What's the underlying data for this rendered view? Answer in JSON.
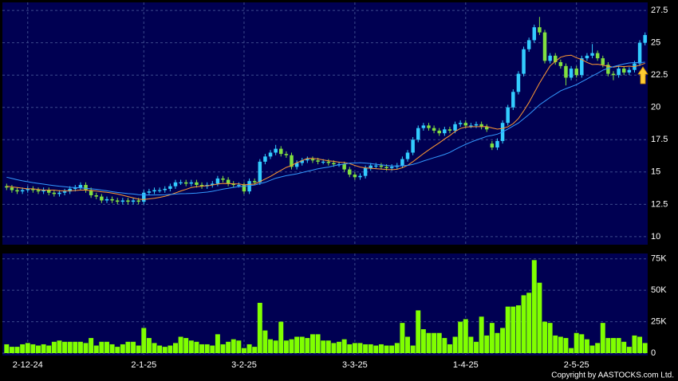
{
  "chart_data": [
    {
      "type": "candlestick",
      "categories": [
        null,
        null,
        null,
        null,
        "2-12-24",
        null,
        null,
        null,
        null,
        null,
        null,
        null,
        null,
        null,
        null,
        null,
        null,
        null,
        null,
        null,
        null,
        null,
        null,
        null,
        null,
        null,
        "2-1-25",
        null,
        null,
        null,
        null,
        null,
        null,
        null,
        null,
        null,
        null,
        null,
        null,
        null,
        null,
        null,
        null,
        null,
        null,
        "3-2-25",
        null,
        null,
        null,
        null,
        null,
        null,
        null,
        null,
        null,
        null,
        null,
        null,
        null,
        null,
        null,
        null,
        null,
        null,
        null,
        null,
        "3-3-25",
        null,
        null,
        null,
        null,
        null,
        null,
        null,
        null,
        null,
        null,
        null,
        null,
        null,
        null,
        null,
        null,
        null,
        null,
        null,
        null,
        "1-4-25",
        null,
        null,
        null,
        null,
        null,
        null,
        null,
        null,
        null,
        null,
        null,
        null,
        null,
        null,
        null,
        null,
        null,
        null,
        null,
        null,
        "2-5-25",
        null,
        null,
        null,
        null,
        null,
        null,
        null,
        null,
        null,
        null,
        null,
        null,
        null
      ],
      "open": [
        13.9,
        13.8,
        13.6,
        13.5,
        13.6,
        13.7,
        13.6,
        13.5,
        13.6,
        13.4,
        13.3,
        13.4,
        13.5,
        13.7,
        13.8,
        14.0,
        13.6,
        13.2,
        13.1,
        12.8,
        12.9,
        12.8,
        12.7,
        12.8,
        12.7,
        12.8,
        12.7,
        13.4,
        13.5,
        13.6,
        13.6,
        13.7,
        13.9,
        14.2,
        14.2,
        14.1,
        14.2,
        14.0,
        13.9,
        14.0,
        14.1,
        14.5,
        14.4,
        14.1,
        14.0,
        14.0,
        13.5,
        14.3,
        14.2,
        15.8,
        16.2,
        16.5,
        16.8,
        16.4,
        16.3,
        15.4,
        15.7,
        15.9,
        16.0,
        15.9,
        15.8,
        15.8,
        15.7,
        15.6,
        15.6,
        15.2,
        14.8,
        14.6,
        14.7,
        15.3,
        15.5,
        15.5,
        15.4,
        15.3,
        15.4,
        15.5,
        16.0,
        16.5,
        17.5,
        18.4,
        18.6,
        18.4,
        18.2,
        18.0,
        18.3,
        18.2,
        18.7,
        18.8,
        18.6,
        18.6,
        18.7,
        18.5,
        17.2,
        16.9,
        17.4,
        18.8,
        20.0,
        21.2,
        22.6,
        24.5,
        25.2,
        26.2,
        25.8,
        23.6,
        24.0,
        23.5,
        23.2,
        22.3,
        23.0,
        22.5,
        23.8,
        24.0,
        24.2,
        23.8,
        23.3,
        22.6,
        22.5,
        23.0,
        22.7,
        22.9,
        23.4,
        25.0
      ],
      "high": [
        14.1,
        14.0,
        13.8,
        13.8,
        13.9,
        13.9,
        13.8,
        13.8,
        13.8,
        13.6,
        13.6,
        13.7,
        13.9,
        14.0,
        14.2,
        14.2,
        13.8,
        13.4,
        13.3,
        13.1,
        13.1,
        13.0,
        13.0,
        13.0,
        13.0,
        13.0,
        13.6,
        13.7,
        13.8,
        13.8,
        13.9,
        14.1,
        14.4,
        14.4,
        14.4,
        14.4,
        14.4,
        14.2,
        14.2,
        14.3,
        14.7,
        14.7,
        14.6,
        14.3,
        14.2,
        14.2,
        14.5,
        14.5,
        16.0,
        16.4,
        16.7,
        17.1,
        17.0,
        16.6,
        16.5,
        15.9,
        16.1,
        16.2,
        16.2,
        16.1,
        16.0,
        16.0,
        15.9,
        15.8,
        15.8,
        15.4,
        15.0,
        14.9,
        15.5,
        15.7,
        15.7,
        15.7,
        15.6,
        15.6,
        15.7,
        16.2,
        16.7,
        17.7,
        18.6,
        18.8,
        18.8,
        18.6,
        18.4,
        18.5,
        18.5,
        18.9,
        19.0,
        19.0,
        18.8,
        18.9,
        18.9,
        18.7,
        17.4,
        17.6,
        19.0,
        20.2,
        21.4,
        22.8,
        24.7,
        25.4,
        26.4,
        27.0,
        26.0,
        24.2,
        24.2,
        23.7,
        23.4,
        23.2,
        23.2,
        24.0,
        24.2,
        24.9,
        24.4,
        24.0,
        23.5,
        22.8,
        23.2,
        23.2,
        23.1,
        23.6,
        25.2,
        25.8
      ],
      "low": [
        13.6,
        13.4,
        13.3,
        13.3,
        13.4,
        13.4,
        13.3,
        13.3,
        13.2,
        13.1,
        13.1,
        13.2,
        13.3,
        13.5,
        13.6,
        13.4,
        13.0,
        12.9,
        12.6,
        12.6,
        12.6,
        12.5,
        12.5,
        12.5,
        12.5,
        12.5,
        12.5,
        13.2,
        13.3,
        13.4,
        13.4,
        13.5,
        13.7,
        14.0,
        13.9,
        13.9,
        13.8,
        13.7,
        13.7,
        13.8,
        13.9,
        14.2,
        13.9,
        13.8,
        13.8,
        13.3,
        13.3,
        14.0,
        14.0,
        15.6,
        16.0,
        16.3,
        16.2,
        16.1,
        15.2,
        15.2,
        15.5,
        15.7,
        15.7,
        15.6,
        15.6,
        15.5,
        15.4,
        15.4,
        15.0,
        14.6,
        14.4,
        14.4,
        14.5,
        15.1,
        15.3,
        15.2,
        15.1,
        15.1,
        15.2,
        15.3,
        15.8,
        16.3,
        17.3,
        18.2,
        18.2,
        18.0,
        17.8,
        17.8,
        18.0,
        18.0,
        18.5,
        18.4,
        18.4,
        18.4,
        18.3,
        18.1,
        16.7,
        16.7,
        17.2,
        18.6,
        19.8,
        21.0,
        22.4,
        24.3,
        25.0,
        25.6,
        23.4,
        23.4,
        23.3,
        23.0,
        21.7,
        22.1,
        22.3,
        22.3,
        23.6,
        23.8,
        23.6,
        23.1,
        22.4,
        22.1,
        22.3,
        22.5,
        22.5,
        22.7,
        23.2,
        24.8
      ],
      "close": [
        13.8,
        13.6,
        13.5,
        13.6,
        13.7,
        13.6,
        13.5,
        13.6,
        13.4,
        13.3,
        13.4,
        13.5,
        13.7,
        13.8,
        14.0,
        13.6,
        13.2,
        13.1,
        12.8,
        12.9,
        12.8,
        12.7,
        12.8,
        12.7,
        12.8,
        12.7,
        13.4,
        13.5,
        13.6,
        13.6,
        13.7,
        13.9,
        14.2,
        14.2,
        14.1,
        14.2,
        14.0,
        13.9,
        14.0,
        14.1,
        14.5,
        14.4,
        14.1,
        14.0,
        14.0,
        13.5,
        14.3,
        14.2,
        15.8,
        16.2,
        16.5,
        16.8,
        16.4,
        16.3,
        15.4,
        15.7,
        15.9,
        16.0,
        15.9,
        15.8,
        15.8,
        15.7,
        15.6,
        15.6,
        15.2,
        14.8,
        14.6,
        14.7,
        15.3,
        15.5,
        15.5,
        15.4,
        15.3,
        15.4,
        15.5,
        16.0,
        16.5,
        17.5,
        18.4,
        18.6,
        18.4,
        18.2,
        18.0,
        18.3,
        18.2,
        18.7,
        18.8,
        18.6,
        18.6,
        18.7,
        18.5,
        18.3,
        16.9,
        17.4,
        18.8,
        20.0,
        21.2,
        22.6,
        24.5,
        25.2,
        26.2,
        25.8,
        23.6,
        24.0,
        23.5,
        23.2,
        22.3,
        23.0,
        22.5,
        23.8,
        24.0,
        24.2,
        23.8,
        23.3,
        22.6,
        22.5,
        23.0,
        22.7,
        22.9,
        23.4,
        25.0,
        25.6
      ],
      "up_color": "#33ccff",
      "down_color": "#80e040",
      "lines": [
        {
          "color": "#ff9933",
          "values": [
            13.9,
            13.85,
            13.8,
            13.75,
            13.7,
            13.7,
            13.65,
            13.6,
            13.6,
            13.6,
            13.55,
            13.55,
            13.55,
            13.57,
            13.6,
            13.6,
            13.57,
            13.53,
            13.47,
            13.43,
            13.37,
            13.3,
            13.2,
            13.1,
            13.0,
            12.9,
            12.88,
            12.92,
            12.97,
            13.04,
            13.12,
            13.24,
            13.38,
            13.53,
            13.66,
            13.8,
            13.86,
            13.9,
            13.94,
            13.99,
            14.07,
            14.12,
            14.11,
            14.09,
            14.08,
            14.01,
            14.04,
            14.07,
            14.25,
            14.46,
            14.66,
            14.9,
            15.13,
            15.36,
            15.5,
            15.72,
            15.88,
            16.06,
            16.05,
            16.01,
            15.94,
            15.87,
            15.83,
            15.76,
            15.74,
            15.65,
            15.51,
            15.38,
            15.32,
            15.29,
            15.26,
            15.23,
            15.2,
            15.18,
            15.21,
            15.33,
            15.52,
            15.8,
            16.11,
            16.42,
            16.71,
            16.99,
            17.26,
            17.55,
            17.82,
            18.14,
            18.37,
            18.48,
            18.5,
            18.51,
            18.51,
            18.52,
            18.41,
            18.32,
            18.37,
            18.5,
            18.74,
            19.14,
            19.73,
            20.38,
            21.13,
            21.88,
            22.55,
            23.21,
            23.56,
            23.88,
            24.0,
            24.04,
            23.84,
            23.7,
            23.48,
            23.32,
            23.34,
            23.27,
            23.18,
            23.11,
            23.18,
            23.15,
            23.19,
            23.15,
            23.27,
            23.41
          ]
        },
        {
          "color": "#3399ff",
          "values": [
            14.6,
            14.5,
            14.4,
            14.32,
            14.25,
            14.18,
            14.12,
            14.06,
            14.0,
            13.95,
            13.9,
            13.86,
            13.82,
            13.8,
            13.77,
            13.74,
            13.7,
            13.66,
            13.6,
            13.55,
            13.48,
            13.42,
            13.38,
            13.33,
            13.3,
            13.25,
            13.22,
            13.22,
            13.22,
            13.23,
            13.24,
            13.27,
            13.29,
            13.32,
            13.33,
            13.35,
            13.37,
            13.41,
            13.45,
            13.51,
            13.59,
            13.68,
            13.74,
            13.81,
            13.87,
            13.9,
            13.95,
            13.99,
            14.1,
            14.2,
            14.36,
            14.52,
            14.62,
            14.72,
            14.79,
            14.86,
            14.96,
            15.06,
            15.15,
            15.25,
            15.32,
            15.38,
            15.48,
            15.56,
            15.62,
            15.68,
            15.7,
            15.72,
            15.69,
            15.65,
            15.6,
            15.55,
            15.51,
            15.47,
            15.47,
            15.49,
            15.51,
            15.59,
            15.71,
            15.85,
            15.98,
            16.11,
            16.23,
            16.36,
            16.52,
            16.74,
            16.95,
            17.14,
            17.31,
            17.47,
            17.61,
            17.76,
            17.83,
            17.93,
            18.1,
            18.32,
            18.56,
            18.79,
            19.12,
            19.45,
            19.82,
            20.2,
            20.48,
            20.77,
            21.02,
            21.28,
            21.45,
            21.6,
            21.76,
            21.98,
            22.2,
            22.43,
            22.64,
            22.88,
            23.02,
            23.15,
            23.26,
            23.36,
            23.44,
            23.47,
            23.46,
            23.5
          ]
        }
      ],
      "ylim": [
        9.5,
        28
      ],
      "yticks": [
        10,
        12.5,
        15,
        17.5,
        20,
        22.5,
        25,
        27.5
      ],
      "grid": true
    },
    {
      "type": "bar",
      "color": "#80ff00",
      "values": [
        7000,
        5000,
        5000,
        7000,
        8000,
        7000,
        6000,
        7000,
        6000,
        9000,
        10000,
        9000,
        9000,
        9000,
        9000,
        8000,
        12000,
        6000,
        9000,
        9000,
        7000,
        5000,
        7000,
        9000,
        9000,
        6000,
        20000,
        12000,
        8000,
        6000,
        5000,
        6000,
        8000,
        13000,
        12000,
        10000,
        9000,
        7000,
        7000,
        6000,
        15000,
        7000,
        9000,
        11000,
        10000,
        4000,
        7000,
        5000,
        40000,
        18000,
        11000,
        10000,
        25000,
        10000,
        11000,
        13000,
        13000,
        12000,
        15000,
        15000,
        10000,
        10000,
        8000,
        9000,
        11000,
        7000,
        8000,
        8000,
        7000,
        7000,
        6000,
        7000,
        6000,
        6000,
        8000,
        24000,
        13000,
        6000,
        34000,
        19000,
        16000,
        16000,
        16000,
        12000,
        7000,
        13000,
        25000,
        27000,
        13000,
        9000,
        29000,
        14000,
        24000,
        16000,
        20000,
        37000,
        37000,
        38000,
        46000,
        48000,
        74000,
        56000,
        25000,
        24000,
        14000,
        13000,
        12000,
        4000,
        16000,
        15000,
        11000,
        6000,
        8000,
        24000,
        12000,
        12000,
        12000,
        9000,
        5000,
        14000,
        13000,
        8000
      ],
      "ylim": [
        0,
        78000
      ],
      "yticks": [
        0,
        {
          "value": 25000,
          "label": "25K"
        },
        {
          "value": 50000,
          "label": "50K"
        },
        {
          "value": 75000,
          "label": "75K"
        }
      ],
      "grid": true
    }
  ],
  "copyright": "Copyright by AASTOCKS.com Ltd."
}
